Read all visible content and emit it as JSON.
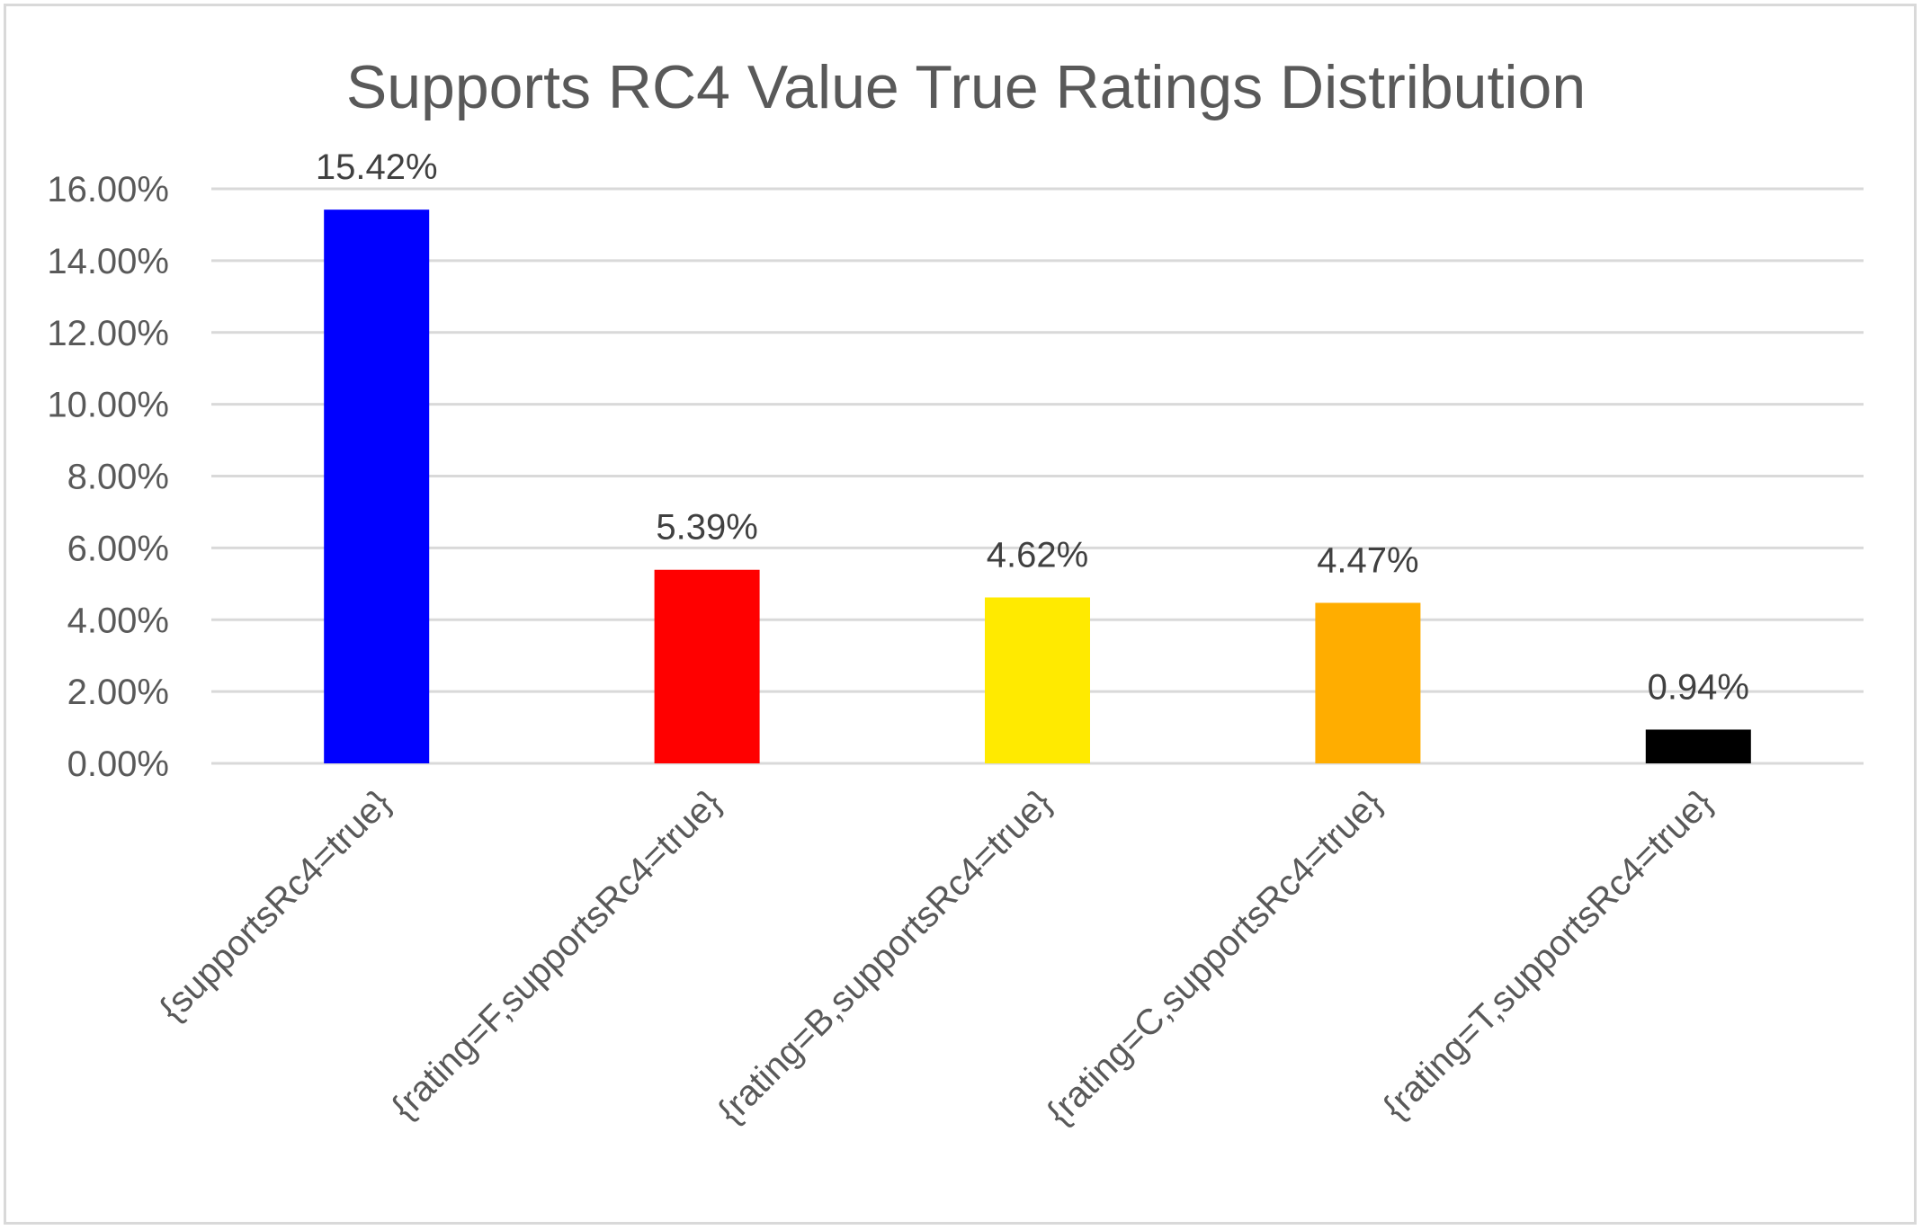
{
  "chart_data": {
    "type": "bar",
    "title": "Supports RC4 Value True Ratings Distribution",
    "xlabel": "",
    "ylabel": "",
    "ylim": [
      0,
      16
    ],
    "yticks": [
      "0.00%",
      "2.00%",
      "4.00%",
      "6.00%",
      "8.00%",
      "10.00%",
      "12.00%",
      "14.00%",
      "16.00%"
    ],
    "y_tick_values": [
      0,
      2,
      4,
      6,
      8,
      10,
      12,
      14,
      16
    ],
    "grid": true,
    "legend": "none",
    "categories": [
      "{supportsRc4=true}",
      "{rating=F,supportsRc4=true}",
      "{rating=B,supportsRc4=true}",
      "{rating=C,supportsRc4=true}",
      "{rating=T,supportsRc4=true}"
    ],
    "values": [
      15.42,
      5.39,
      4.62,
      4.47,
      0.94
    ],
    "data_labels": [
      "15.42%",
      "5.39%",
      "4.62%",
      "4.47%",
      "0.94%"
    ],
    "colors": [
      "#0000ff",
      "#ff0000",
      "#ffea00",
      "#ffad00",
      "#000000"
    ]
  }
}
